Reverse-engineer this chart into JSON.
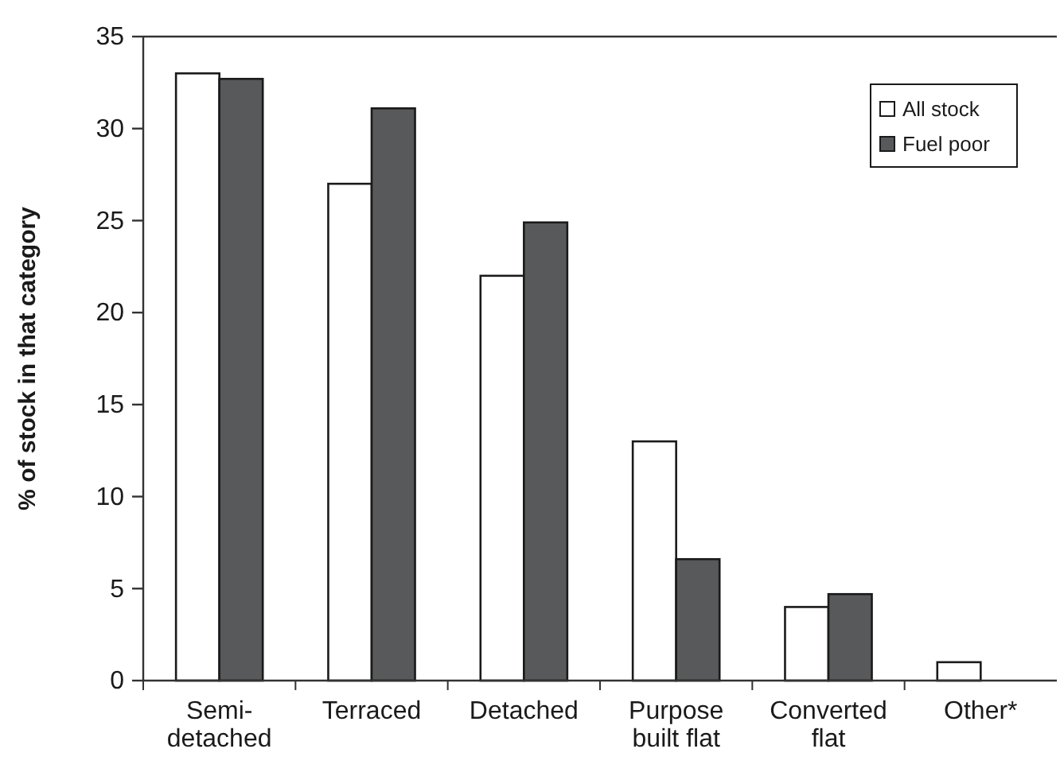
{
  "chart_data": {
    "type": "bar",
    "ylabel": "% of stock in that category",
    "categories": [
      "Semi-\ndetached",
      "Terraced",
      "Detached",
      "Purpose\nbuilt flat",
      "Converted\nflat",
      "Other*"
    ],
    "series": [
      {
        "name": "All stock",
        "color": "#ffffff",
        "values": [
          33,
          27,
          22,
          13,
          4,
          1
        ]
      },
      {
        "name": "Fuel poor",
        "color": "#58595b",
        "values": [
          32.7,
          31.1,
          24.9,
          6.6,
          4.7,
          null
        ]
      }
    ],
    "ylim": [
      0,
      35
    ],
    "yticks": [
      0,
      5,
      10,
      15,
      20,
      25,
      30,
      35
    ],
    "grid": false,
    "legend": "top right"
  }
}
